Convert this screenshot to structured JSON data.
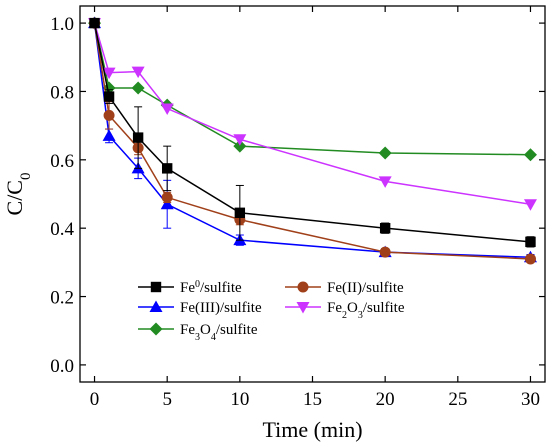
{
  "chart_data": {
    "type": "line",
    "xlabel": "Time (min)",
    "ylabel": {
      "main": "C/C",
      "sub": "0"
    },
    "xlim": [
      -1,
      31
    ],
    "ylim": [
      -0.05,
      1.05
    ],
    "x_ticks": [
      0,
      5,
      10,
      15,
      20,
      25,
      30
    ],
    "y_ticks": [
      0.0,
      0.2,
      0.4,
      0.6,
      0.8,
      1.0
    ],
    "x_tick_labels": [
      "0",
      "5",
      "10",
      "15",
      "20",
      "25",
      "30"
    ],
    "y_tick_labels": [
      "0.0",
      "0.2",
      "0.4",
      "0.6",
      "0.8",
      "1.0"
    ],
    "grid": false,
    "legend_position": "lower-left",
    "x": [
      0,
      1,
      3,
      5,
      10,
      20,
      30
    ],
    "series": [
      {
        "name": {
          "pre": "Fe",
          "sup": "0",
          "post": "/sulfite"
        },
        "color": "#000000",
        "marker": "square",
        "values": [
          1.0,
          0.785,
          0.665,
          0.575,
          0.445,
          0.4,
          0.36
        ],
        "errors": [
          0.01,
          0.02,
          0.09,
          0.065,
          0.08,
          0.015,
          0.015
        ]
      },
      {
        "name": {
          "pre": "Fe(II)/sulfite"
        },
        "color": "#a0401a",
        "marker": "circle",
        "values": [
          1.0,
          0.73,
          0.635,
          0.49,
          0.425,
          0.33,
          0.31
        ],
        "errors": [
          0.01,
          0.04,
          0.02,
          0.015,
          0.015,
          0.01,
          0.008
        ]
      },
      {
        "name": {
          "pre": "Fe(III)/sulfite"
        },
        "color": "#0000ff",
        "marker": "triangle-up",
        "values": [
          1.0,
          0.67,
          0.575,
          0.47,
          0.365,
          0.33,
          0.315
        ],
        "errors": [
          0.01,
          0.02,
          0.03,
          0.07,
          0.015,
          0.01,
          0.008
        ]
      },
      {
        "name": {
          "pre": "Fe",
          "sub": "2",
          "mid": "O",
          "sub2": "3",
          "post": "/sulfite"
        },
        "color": "#cc33ff",
        "marker": "triangle-down",
        "values": [
          1.0,
          0.855,
          0.858,
          0.75,
          0.66,
          0.537,
          0.47
        ],
        "errors": [
          0.01,
          0.005,
          0.005,
          0.005,
          0.005,
          0.005,
          0.005
        ]
      },
      {
        "name": {
          "pre": "Fe",
          "sub": "3",
          "mid": "O",
          "sub2": "4",
          "post": "/sulfite"
        },
        "color": "#228b22",
        "marker": "diamond",
        "values": [
          1.0,
          0.81,
          0.81,
          0.76,
          0.64,
          0.62,
          0.615
        ],
        "errors": [
          0,
          0,
          0,
          0,
          0,
          0,
          0
        ]
      }
    ]
  }
}
